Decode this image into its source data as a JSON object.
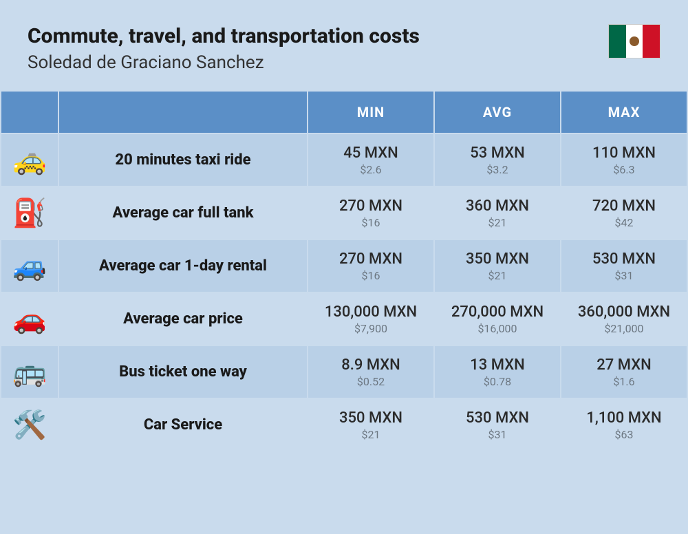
{
  "header": {
    "title": "Commute, travel, and transportation costs",
    "subtitle": "Soledad de Graciano Sanchez",
    "flag_colors": {
      "left": "#006847",
      "center": "#ffffff",
      "right": "#ce1126"
    }
  },
  "table": {
    "columns": {
      "min": "MIN",
      "avg": "AVG",
      "max": "MAX"
    },
    "rows": [
      {
        "icon": "🚕",
        "label": "20 minutes taxi ride",
        "min": {
          "mxn": "45 MXN",
          "usd": "$2.6"
        },
        "avg": {
          "mxn": "53 MXN",
          "usd": "$3.2"
        },
        "max": {
          "mxn": "110 MXN",
          "usd": "$6.3"
        }
      },
      {
        "icon": "⛽",
        "label": "Average car full tank",
        "min": {
          "mxn": "270 MXN",
          "usd": "$16"
        },
        "avg": {
          "mxn": "360 MXN",
          "usd": "$21"
        },
        "max": {
          "mxn": "720 MXN",
          "usd": "$42"
        }
      },
      {
        "icon": "🚙",
        "label": "Average car 1-day rental",
        "min": {
          "mxn": "270 MXN",
          "usd": "$16"
        },
        "avg": {
          "mxn": "350 MXN",
          "usd": "$21"
        },
        "max": {
          "mxn": "530 MXN",
          "usd": "$31"
        }
      },
      {
        "icon": "🚗",
        "label": "Average car price",
        "min": {
          "mxn": "130,000 MXN",
          "usd": "$7,900"
        },
        "avg": {
          "mxn": "270,000 MXN",
          "usd": "$16,000"
        },
        "max": {
          "mxn": "360,000 MXN",
          "usd": "$21,000"
        }
      },
      {
        "icon": "🚌",
        "label": "Bus ticket one way",
        "min": {
          "mxn": "8.9 MXN",
          "usd": "$0.52"
        },
        "avg": {
          "mxn": "13 MXN",
          "usd": "$0.78"
        },
        "max": {
          "mxn": "27 MXN",
          "usd": "$1.6"
        }
      },
      {
        "icon": "🛠️",
        "label": "Car Service",
        "min": {
          "mxn": "350 MXN",
          "usd": "$21"
        },
        "avg": {
          "mxn": "530 MXN",
          "usd": "$31"
        },
        "max": {
          "mxn": "1,100 MXN",
          "usd": "$63"
        }
      }
    ]
  },
  "styling": {
    "background_color": "#c9dbed",
    "header_bg": "#5b8fc7",
    "header_text_color": "#ffffff",
    "row_even_bg": "#b9d0e7",
    "row_odd_bg": "#c9dbed",
    "primary_text_color": "#2a2a2a",
    "secondary_text_color": "#6b7680",
    "title_fontsize": 30,
    "subtitle_fontsize": 26,
    "label_fontsize": 22,
    "primary_fontsize": 22,
    "secondary_fontsize": 16
  }
}
